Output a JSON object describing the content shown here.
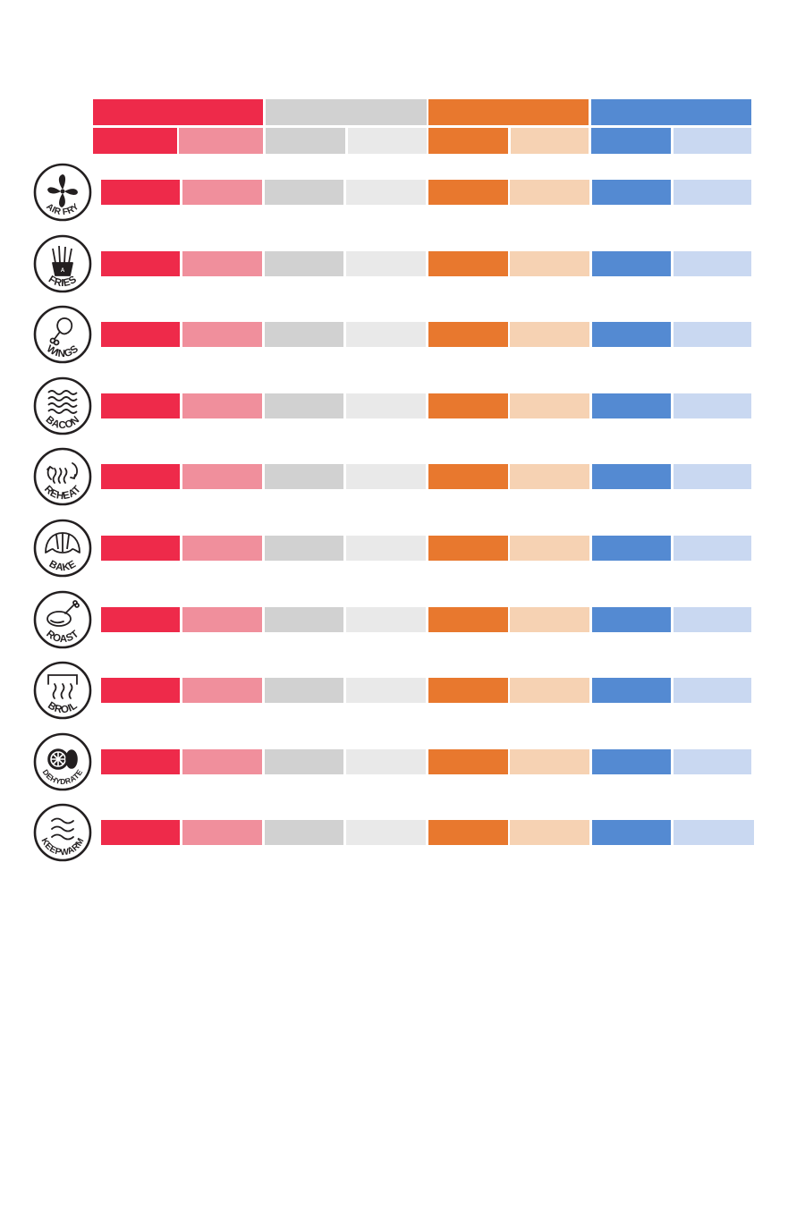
{
  "colors": {
    "red": "#ee2a4a",
    "red_light": "#f08f9c",
    "gray": "#d1d1d1",
    "gray_light": "#e9e9e9",
    "orange": "#e8782e",
    "orange_light": "#f6d2b3",
    "blue": "#548ad2",
    "blue_light": "#c9d8f1",
    "icon_stroke": "#231f20"
  },
  "column_groups": [
    {
      "color": "red",
      "light": "red_light"
    },
    {
      "color": "gray",
      "light": "gray_light"
    },
    {
      "color": "orange",
      "light": "orange_light"
    },
    {
      "color": "blue",
      "light": "blue_light"
    }
  ],
  "functions": [
    {
      "label": "AIR FRY",
      "icon": "fan-icon"
    },
    {
      "label": "FRIES",
      "icon": "fries-icon"
    },
    {
      "label": "WINGS",
      "icon": "drumstick-icon"
    },
    {
      "label": "BACON",
      "icon": "bacon-icon"
    },
    {
      "label": "REHEAT",
      "icon": "reheat-icon"
    },
    {
      "label": "BAKE",
      "icon": "croissant-icon"
    },
    {
      "label": "ROAST",
      "icon": "roast-chicken-icon"
    },
    {
      "label": "BROIL",
      "icon": "broil-icon"
    },
    {
      "label": "DEHYDRATE",
      "icon": "dehydrate-icon"
    },
    {
      "label": "KEEPWARM",
      "icon": "wavy-lines-icon"
    }
  ]
}
